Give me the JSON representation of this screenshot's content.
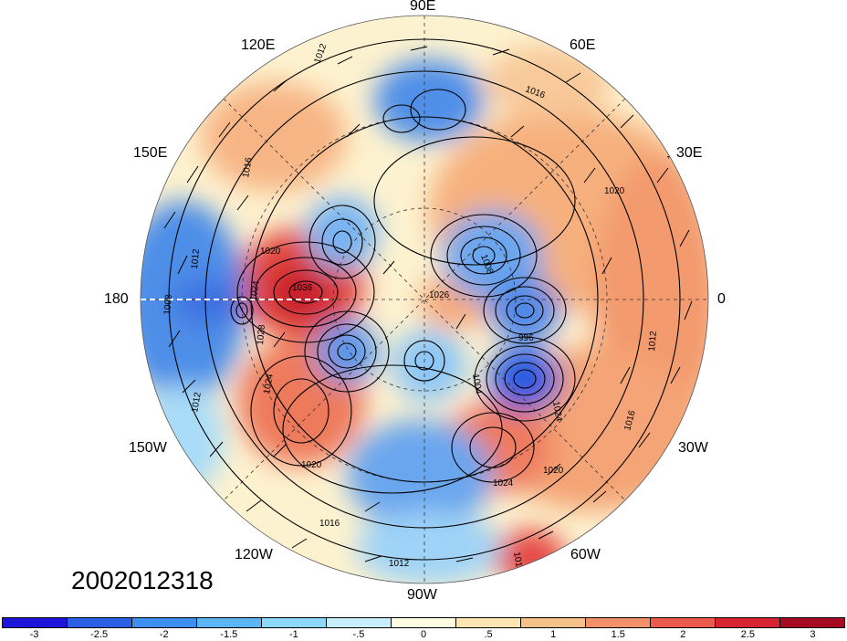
{
  "map": {
    "timestamp": "2002012318",
    "projection": "north-polar-stereographic",
    "longitude_labels": {
      "90E": "90E",
      "120E": "120E",
      "60E": "60E",
      "150E": "150E",
      "30E": "30E",
      "180": "180",
      "0": "0",
      "150W": "150W",
      "30W": "30W",
      "120W": "120W",
      "60W": "60W",
      "90W": "90W"
    },
    "isobar_labels": [
      "1012",
      "1016",
      "1016",
      "1020",
      "1020",
      "1024",
      "1036",
      "1026",
      "1008",
      "1012",
      "1008",
      "1012",
      "1024",
      "1028",
      "1020",
      "1024",
      "1020",
      "1016",
      "1012",
      "1012",
      "1024",
      "1016",
      "1004",
      "996",
      "1008",
      "1012"
    ]
  },
  "colorbar": {
    "tick_labels": [
      "-3",
      "-2.5",
      "-2",
      "-1.5",
      "-1",
      "-.5",
      "0",
      ".5",
      "1",
      "1.5",
      "2",
      "2.5",
      "3"
    ],
    "colors": [
      "#1c14d8",
      "#2a5fe6",
      "#3c8ef0",
      "#5cb6f6",
      "#8ed8fa",
      "#c8eefc",
      "#fdfbe0",
      "#fde6b2",
      "#f9c18a",
      "#f4906a",
      "#ec5a4e",
      "#d82432",
      "#a50c22"
    ]
  }
}
